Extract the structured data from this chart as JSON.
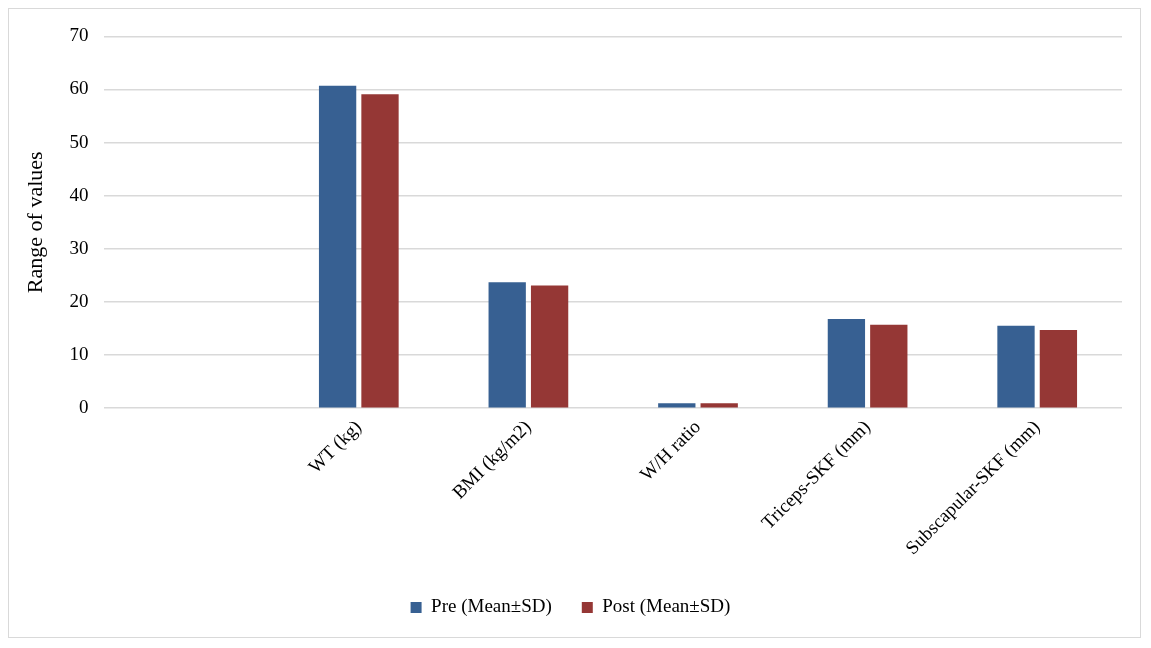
{
  "chart_data": {
    "type": "bar",
    "ylabel": "Range of values",
    "categories": [
      null,
      "WT (kg)",
      "BMI (kg/m2)",
      "W/H ratio",
      "Triceps-SKF (mm)",
      "Subscapular-SKF (mm)"
    ],
    "series": [
      {
        "name": "Pre (Mean±SD)",
        "color": "#376092",
        "values": [
          null,
          60.7,
          23.7,
          0.9,
          16.8,
          15.5
        ]
      },
      {
        "name": "Post (Mean±SD)",
        "color": "#953735",
        "values": [
          null,
          59.1,
          23.1,
          0.9,
          15.7,
          14.7
        ]
      }
    ],
    "ylim": [
      0,
      70
    ],
    "yticks": [
      0,
      10,
      20,
      30,
      40,
      50,
      60,
      70
    ],
    "grid": "y",
    "legend": "bottom"
  }
}
